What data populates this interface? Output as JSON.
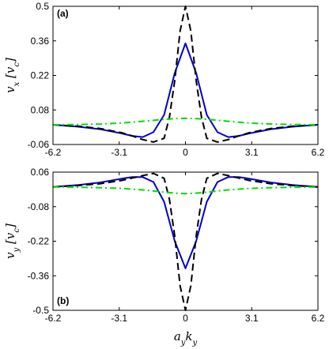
{
  "chart_data": [
    {
      "type": "line",
      "panel_label": "(a)",
      "ylabel": "v_x [v_c]",
      "ylabel_parts": {
        "main": "v",
        "sub": "x",
        "bracket_open": " [",
        "unit_main": "v",
        "unit_sub": "c",
        "bracket_close": "]"
      },
      "xlim": [
        -6.2,
        6.2
      ],
      "ylim": [
        -0.06,
        0.5
      ],
      "xticks": [
        -6.2,
        -3.1,
        0,
        3.1,
        6.2
      ],
      "xtick_labels": [
        "-6.2",
        "-3.1",
        "0",
        "3.1",
        "6.2"
      ],
      "yticks": [
        -0.06,
        0.08,
        0.22,
        0.36,
        0.5
      ],
      "ytick_labels": [
        "-0.06",
        "0.08",
        "0.22",
        "0.36",
        "0.5"
      ],
      "grid": false,
      "series": [
        {
          "color": "#0000cc",
          "style": "solid",
          "x": [
            -6.2,
            -5,
            -4,
            -3,
            -2.5,
            -2,
            -1.5,
            -1,
            -0.5,
            0,
            0.5,
            1,
            1.5,
            2,
            2.5,
            3,
            4,
            5,
            6.2
          ],
          "y": [
            0.02,
            0.012,
            0.002,
            -0.015,
            -0.025,
            -0.03,
            -0.01,
            0.06,
            0.23,
            0.35,
            0.23,
            0.06,
            -0.01,
            -0.03,
            -0.025,
            -0.015,
            0.002,
            0.012,
            0.02
          ]
        },
        {
          "color": "#000000",
          "style": "dashed",
          "x": [
            -6.2,
            -5,
            -4,
            -3,
            -2.5,
            -2,
            -1.5,
            -1,
            -0.75,
            -0.5,
            -0.25,
            0,
            0.25,
            0.5,
            0.75,
            1,
            1.5,
            2,
            2.5,
            3,
            4,
            5,
            6.2
          ],
          "y": [
            0.02,
            0.014,
            0.005,
            -0.012,
            -0.025,
            -0.04,
            -0.05,
            -0.035,
            0.05,
            0.2,
            0.4,
            0.5,
            0.4,
            0.2,
            0.05,
            -0.035,
            -0.05,
            -0.04,
            -0.025,
            -0.012,
            0.005,
            0.014,
            0.02
          ]
        },
        {
          "color": "#00dd00",
          "style": "dashdot",
          "x": [
            -6.2,
            -5,
            -4,
            -3,
            -2,
            -1,
            -0.5,
            0,
            0.5,
            1,
            2,
            3,
            4,
            5,
            6.2
          ],
          "y": [
            0.02,
            0.021,
            0.023,
            0.027,
            0.034,
            0.042,
            0.045,
            0.046,
            0.045,
            0.042,
            0.034,
            0.027,
            0.023,
            0.021,
            0.02
          ]
        }
      ]
    },
    {
      "type": "line",
      "panel_label": "(b)",
      "ylabel": "v_y [v_c]",
      "ylabel_parts": {
        "main": "v",
        "sub": "y",
        "bracket_open": " [",
        "unit_main": "v",
        "unit_sub": "c",
        "bracket_close": "]"
      },
      "xlabel": "a_y k_y",
      "xlabel_parts": {
        "a": "a",
        "a_sub": "y",
        "k": "k",
        "k_sub": "y"
      },
      "xlim": [
        -6.2,
        6.2
      ],
      "ylim": [
        -0.5,
        0.06
      ],
      "xticks": [
        -6.2,
        -3.1,
        0,
        3.1,
        6.2
      ],
      "xtick_labels": [
        "-6.2",
        "-3.1",
        "0",
        "3.1",
        "6.2"
      ],
      "yticks": [
        -0.5,
        -0.36,
        -0.22,
        -0.08,
        0.06
      ],
      "ytick_labels": [
        "-0.5",
        "-0.36",
        "-0.22",
        "-0.08",
        "0.06"
      ],
      "grid": false,
      "series": [
        {
          "color": "#0000cc",
          "style": "solid",
          "x": [
            -6.2,
            -5,
            -4,
            -3,
            -2.5,
            -2,
            -1.5,
            -1,
            -0.5,
            0,
            0.5,
            1,
            1.5,
            2,
            2.5,
            3,
            4,
            5,
            6.2
          ],
          "y": [
            0.0,
            0.008,
            0.018,
            0.033,
            0.04,
            0.04,
            0.02,
            -0.06,
            -0.22,
            -0.33,
            -0.22,
            -0.06,
            0.02,
            0.04,
            0.04,
            0.033,
            0.018,
            0.008,
            0.0
          ]
        },
        {
          "color": "#000000",
          "style": "dashed",
          "x": [
            -6.2,
            -5,
            -4,
            -3,
            -2.5,
            -2,
            -1.5,
            -1,
            -0.75,
            -0.5,
            -0.25,
            0,
            0.25,
            0.5,
            0.75,
            1,
            1.5,
            2,
            2.5,
            3,
            4,
            5,
            6.2
          ],
          "y": [
            0.0,
            0.006,
            0.013,
            0.026,
            0.036,
            0.046,
            0.055,
            0.035,
            -0.05,
            -0.2,
            -0.4,
            -0.5,
            -0.4,
            -0.2,
            -0.05,
            0.035,
            0.055,
            0.046,
            0.036,
            0.026,
            0.013,
            0.006,
            0.0
          ]
        },
        {
          "color": "#00dd00",
          "style": "dashdot",
          "x": [
            -6.2,
            -5,
            -4,
            -3,
            -2,
            -1,
            -0.5,
            0,
            0.5,
            1,
            2,
            3,
            4,
            5,
            6.2
          ],
          "y": [
            0.0,
            -0.001,
            -0.003,
            -0.006,
            -0.012,
            -0.021,
            -0.025,
            -0.027,
            -0.025,
            -0.021,
            -0.012,
            -0.006,
            -0.003,
            -0.001,
            0.0
          ]
        }
      ]
    }
  ]
}
